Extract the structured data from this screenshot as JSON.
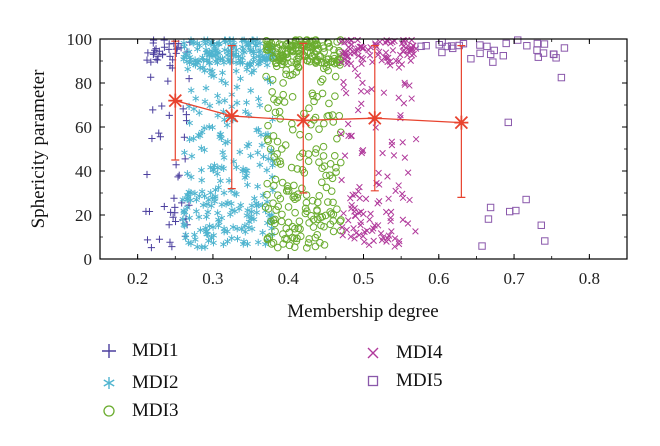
{
  "chart_data": {
    "type": "scatter",
    "title": "",
    "xlabel": "Membership degree",
    "ylabel": "Sphericity parameter",
    "xlim": [
      0.15,
      0.85
    ],
    "ylim": [
      0,
      100
    ],
    "xticks": [
      "0.2",
      "0.3",
      "0.4",
      "0.5",
      "0.6",
      "0.7",
      "0.8"
    ],
    "yticks": [
      "0",
      "20",
      "40",
      "60",
      "80",
      "100"
    ],
    "grid": false,
    "legend_position": "below",
    "series": [
      {
        "name": "MDI1",
        "marker": "plus",
        "color": "#4b3f9e",
        "x_range": [
          0.21,
          0.27
        ],
        "count": 70
      },
      {
        "name": "MDI2",
        "marker": "star",
        "color": "#4fb4cf",
        "x_range": [
          0.26,
          0.38
        ],
        "count": 380
      },
      {
        "name": "MDI3",
        "marker": "circle",
        "color": "#6aac2e",
        "x_range": [
          0.37,
          0.47
        ],
        "count": 340
      },
      {
        "name": "MDI4",
        "marker": "cross",
        "color": "#b0399b",
        "x_range": [
          0.47,
          0.57
        ],
        "count": 200
      },
      {
        "name": "MDI5",
        "marker": "square",
        "color": "#8a58ab",
        "x_range": [
          0.57,
          0.77
        ],
        "count": 40
      }
    ],
    "mean_line": {
      "color": "#e8432e",
      "points": [
        {
          "x": 0.25,
          "y": 72,
          "low": 45,
          "high": 99
        },
        {
          "x": 0.325,
          "y": 65,
          "low": 32,
          "high": 97
        },
        {
          "x": 0.42,
          "y": 63,
          "low": 30,
          "high": 98
        },
        {
          "x": 0.515,
          "y": 64,
          "low": 31,
          "high": 97
        },
        {
          "x": 0.63,
          "y": 62,
          "low": 28,
          "high": 97
        }
      ]
    }
  }
}
